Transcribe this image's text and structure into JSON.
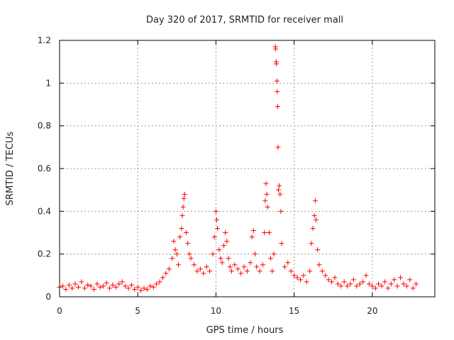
{
  "chart_data": {
    "type": "scatter",
    "title": "Day 320 of 2017, SRMTID for receiver mall",
    "xlabel": "GPS time / hours",
    "ylabel": "SRMTID / TECUs",
    "xlim": [
      0,
      24
    ],
    "ylim": [
      0,
      1.2
    ],
    "x_ticks": [
      0,
      5,
      10,
      15,
      20
    ],
    "x_tick_labels": [
      "0",
      "5",
      "10",
      "15",
      "20"
    ],
    "y_ticks": [
      0,
      0.2,
      0.4,
      0.6,
      0.8,
      1.0,
      1.2
    ],
    "y_tick_labels": [
      "0",
      "0.2",
      "0.4",
      "0.6",
      "0.8",
      "1",
      "1.2"
    ],
    "grid": true,
    "marker": "+",
    "color": "#ff0000",
    "series": [
      {
        "name": "SRMTID",
        "points": [
          [
            0.0,
            0.045
          ],
          [
            0.2,
            0.05
          ],
          [
            0.4,
            0.035
          ],
          [
            0.6,
            0.055
          ],
          [
            0.8,
            0.04
          ],
          [
            1.0,
            0.06
          ],
          [
            1.2,
            0.045
          ],
          [
            1.4,
            0.07
          ],
          [
            1.6,
            0.04
          ],
          [
            1.8,
            0.055
          ],
          [
            2.0,
            0.05
          ],
          [
            2.2,
            0.035
          ],
          [
            2.4,
            0.06
          ],
          [
            2.6,
            0.045
          ],
          [
            2.8,
            0.05
          ],
          [
            3.0,
            0.065
          ],
          [
            3.2,
            0.04
          ],
          [
            3.4,
            0.055
          ],
          [
            3.6,
            0.045
          ],
          [
            3.8,
            0.06
          ],
          [
            4.0,
            0.07
          ],
          [
            4.2,
            0.05
          ],
          [
            4.4,
            0.04
          ],
          [
            4.6,
            0.055
          ],
          [
            4.8,
            0.035
          ],
          [
            5.0,
            0.045
          ],
          [
            5.2,
            0.03
          ],
          [
            5.4,
            0.04
          ],
          [
            5.6,
            0.035
          ],
          [
            5.8,
            0.05
          ],
          [
            6.0,
            0.045
          ],
          [
            6.2,
            0.06
          ],
          [
            6.4,
            0.07
          ],
          [
            6.6,
            0.09
          ],
          [
            6.8,
            0.11
          ],
          [
            7.0,
            0.13
          ],
          [
            7.2,
            0.18
          ],
          [
            7.3,
            0.26
          ],
          [
            7.4,
            0.22
          ],
          [
            7.5,
            0.2
          ],
          [
            7.6,
            0.15
          ],
          [
            7.7,
            0.28
          ],
          [
            7.8,
            0.32
          ],
          [
            7.85,
            0.38
          ],
          [
            7.9,
            0.42
          ],
          [
            7.95,
            0.46
          ],
          [
            8.0,
            0.48
          ],
          [
            8.1,
            0.3
          ],
          [
            8.2,
            0.25
          ],
          [
            8.3,
            0.2
          ],
          [
            8.4,
            0.18
          ],
          [
            8.6,
            0.15
          ],
          [
            8.8,
            0.12
          ],
          [
            9.0,
            0.13
          ],
          [
            9.2,
            0.11
          ],
          [
            9.4,
            0.14
          ],
          [
            9.6,
            0.12
          ],
          [
            9.8,
            0.2
          ],
          [
            9.9,
            0.28
          ],
          [
            10.0,
            0.4
          ],
          [
            10.05,
            0.36
          ],
          [
            10.1,
            0.32
          ],
          [
            10.2,
            0.22
          ],
          [
            10.3,
            0.18
          ],
          [
            10.4,
            0.16
          ],
          [
            10.5,
            0.24
          ],
          [
            10.6,
            0.3
          ],
          [
            10.7,
            0.26
          ],
          [
            10.8,
            0.18
          ],
          [
            10.9,
            0.14
          ],
          [
            11.0,
            0.12
          ],
          [
            11.2,
            0.15
          ],
          [
            11.4,
            0.13
          ],
          [
            11.6,
            0.11
          ],
          [
            11.8,
            0.14
          ],
          [
            12.0,
            0.12
          ],
          [
            12.2,
            0.16
          ],
          [
            12.3,
            0.28
          ],
          [
            12.4,
            0.31
          ],
          [
            12.5,
            0.2
          ],
          [
            12.6,
            0.14
          ],
          [
            12.8,
            0.12
          ],
          [
            13.0,
            0.15
          ],
          [
            13.1,
            0.3
          ],
          [
            13.15,
            0.45
          ],
          [
            13.2,
            0.53
          ],
          [
            13.25,
            0.48
          ],
          [
            13.3,
            0.42
          ],
          [
            13.4,
            0.3
          ],
          [
            13.5,
            0.18
          ],
          [
            13.6,
            0.12
          ],
          [
            13.7,
            0.2
          ],
          [
            13.8,
            1.17
          ],
          [
            13.82,
            1.16
          ],
          [
            13.85,
            1.1
          ],
          [
            13.87,
            1.09
          ],
          [
            13.9,
            1.01
          ],
          [
            13.92,
            0.96
          ],
          [
            13.95,
            0.89
          ],
          [
            13.97,
            0.7
          ],
          [
            14.0,
            0.5
          ],
          [
            14.05,
            0.52
          ],
          [
            14.1,
            0.48
          ],
          [
            14.15,
            0.4
          ],
          [
            14.2,
            0.25
          ],
          [
            14.4,
            0.14
          ],
          [
            14.6,
            0.16
          ],
          [
            14.8,
            0.12
          ],
          [
            15.0,
            0.1
          ],
          [
            15.2,
            0.09
          ],
          [
            15.4,
            0.08
          ],
          [
            15.6,
            0.1
          ],
          [
            15.8,
            0.07
          ],
          [
            16.0,
            0.12
          ],
          [
            16.1,
            0.25
          ],
          [
            16.2,
            0.32
          ],
          [
            16.3,
            0.38
          ],
          [
            16.35,
            0.45
          ],
          [
            16.4,
            0.36
          ],
          [
            16.5,
            0.22
          ],
          [
            16.6,
            0.15
          ],
          [
            16.8,
            0.12
          ],
          [
            17.0,
            0.1
          ],
          [
            17.2,
            0.08
          ],
          [
            17.4,
            0.07
          ],
          [
            17.6,
            0.09
          ],
          [
            17.8,
            0.06
          ],
          [
            18.0,
            0.05
          ],
          [
            18.2,
            0.07
          ],
          [
            18.4,
            0.05
          ],
          [
            18.6,
            0.06
          ],
          [
            18.8,
            0.08
          ],
          [
            19.0,
            0.05
          ],
          [
            19.2,
            0.06
          ],
          [
            19.4,
            0.07
          ],
          [
            19.6,
            0.1
          ],
          [
            19.8,
            0.06
          ],
          [
            20.0,
            0.05
          ],
          [
            20.2,
            0.04
          ],
          [
            20.4,
            0.06
          ],
          [
            20.6,
            0.05
          ],
          [
            20.8,
            0.07
          ],
          [
            21.0,
            0.04
          ],
          [
            21.2,
            0.06
          ],
          [
            21.4,
            0.08
          ],
          [
            21.6,
            0.05
          ],
          [
            21.8,
            0.09
          ],
          [
            22.0,
            0.06
          ],
          [
            22.2,
            0.05
          ],
          [
            22.4,
            0.08
          ],
          [
            22.6,
            0.04
          ],
          [
            22.8,
            0.06
          ]
        ]
      }
    ]
  }
}
